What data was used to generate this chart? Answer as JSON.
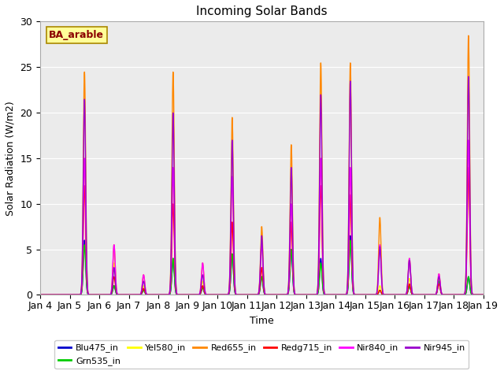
{
  "title": "Incoming Solar Bands",
  "xlabel": "Time",
  "ylabel": "Solar Radiation (W/m2)",
  "annotation": "BA_arable",
  "annotation_color": "#8B0000",
  "annotation_bg": "#FFFF99",
  "ylim": [
    0,
    30
  ],
  "xlim": [
    0,
    15
  ],
  "background_color": "#EBEBEB",
  "series": [
    {
      "label": "Blu475_in",
      "color": "#0000CC",
      "lw": 1.0
    },
    {
      "label": "Grn535_in",
      "color": "#00CC00",
      "lw": 1.0
    },
    {
      "label": "Yel580_in",
      "color": "#FFFF00",
      "lw": 1.0
    },
    {
      "label": "Red655_in",
      "color": "#FF8800",
      "lw": 1.0
    },
    {
      "label": "Redg715_in",
      "color": "#FF0000",
      "lw": 1.0
    },
    {
      "label": "Nir840_in",
      "color": "#FF00FF",
      "lw": 1.0
    },
    {
      "label": "Nir945_in",
      "color": "#9900CC",
      "lw": 1.0
    }
  ],
  "day_labels": [
    "Jan 4",
    "Jan 5",
    "Jan 6",
    "Jan 7",
    "Jan 8",
    "Jan 9",
    "Jan 10",
    "Jan 11",
    "Jan 12",
    "Jan 13",
    "Jan 14",
    "Jan 15",
    "Jan 16",
    "Jan 17",
    "Jan 18",
    "Jan 19"
  ],
  "day_peaks": {
    "Jan 5": {
      "Blu475_in": 6.0,
      "Grn535_in": 5.5,
      "Yel580_in": 15.0,
      "Red655_in": 24.5,
      "Redg715_in": 12.0,
      "Nir840_in": 15.0,
      "Nir945_in": 21.5
    },
    "Jan 6": {
      "Blu475_in": 1.0,
      "Grn535_in": 1.0,
      "Yel580_in": 3.5,
      "Red655_in": 5.5,
      "Redg715_in": 2.0,
      "Nir840_in": 5.5,
      "Nir945_in": 3.0
    },
    "Jan 7": {
      "Blu475_in": 0.5,
      "Grn535_in": 0.5,
      "Yel580_in": 1.0,
      "Red655_in": 2.2,
      "Redg715_in": 0.7,
      "Nir840_in": 2.2,
      "Nir945_in": 1.5
    },
    "Jan 8": {
      "Blu475_in": 4.0,
      "Grn535_in": 4.0,
      "Yel580_in": 14.0,
      "Red655_in": 24.5,
      "Redg715_in": 10.0,
      "Nir840_in": 14.0,
      "Nir945_in": 20.0
    },
    "Jan 9": {
      "Blu475_in": 0.8,
      "Grn535_in": 0.8,
      "Yel580_in": 1.5,
      "Red655_in": 3.5,
      "Redg715_in": 1.0,
      "Nir840_in": 3.5,
      "Nir945_in": 2.2
    },
    "Jan 10": {
      "Blu475_in": 4.5,
      "Grn535_in": 4.5,
      "Yel580_in": 13.0,
      "Red655_in": 19.5,
      "Redg715_in": 8.0,
      "Nir840_in": 13.0,
      "Nir945_in": 17.0
    },
    "Jan 11": {
      "Blu475_in": 2.0,
      "Grn535_in": 2.0,
      "Yel580_in": 5.5,
      "Red655_in": 7.5,
      "Redg715_in": 3.0,
      "Nir840_in": 5.5,
      "Nir945_in": 6.5
    },
    "Jan 12": {
      "Blu475_in": 5.0,
      "Grn535_in": 5.0,
      "Yel580_in": 10.0,
      "Red655_in": 16.5,
      "Redg715_in": 8.0,
      "Nir840_in": 10.0,
      "Nir945_in": 14.0
    },
    "Jan 13": {
      "Blu475_in": 4.0,
      "Grn535_in": 3.5,
      "Yel580_in": 15.0,
      "Red655_in": 25.5,
      "Redg715_in": 12.0,
      "Nir840_in": 15.0,
      "Nir945_in": 22.0
    },
    "Jan 14": {
      "Blu475_in": 6.5,
      "Grn535_in": 6.0,
      "Yel580_in": 14.0,
      "Red655_in": 25.5,
      "Redg715_in": 11.0,
      "Nir840_in": 14.0,
      "Nir945_in": 23.5
    },
    "Jan 15": {
      "Blu475_in": 0.5,
      "Grn535_in": 0.5,
      "Yel580_in": 1.0,
      "Red655_in": 8.5,
      "Redg715_in": 0.5,
      "Nir840_in": 5.5,
      "Nir945_in": 5.3
    },
    "Jan 16": {
      "Blu475_in": 1.0,
      "Grn535_in": 1.0,
      "Yel580_in": 1.8,
      "Red655_in": 4.0,
      "Redg715_in": 1.2,
      "Nir840_in": 4.0,
      "Nir945_in": 3.8
    },
    "Jan 17": {
      "Blu475_in": 1.5,
      "Grn535_in": 1.5,
      "Yel580_in": 2.0,
      "Red655_in": 2.3,
      "Redg715_in": 1.2,
      "Nir840_in": 2.3,
      "Nir945_in": 2.0
    },
    "Jan 18": {
      "Blu475_in": 2.0,
      "Grn535_in": 2.0,
      "Yel580_in": 17.0,
      "Red655_in": 28.5,
      "Redg715_in": 14.0,
      "Nir840_in": 17.0,
      "Nir945_in": 24.0
    }
  },
  "figsize": [
    6.4,
    4.8
  ],
  "dpi": 100
}
